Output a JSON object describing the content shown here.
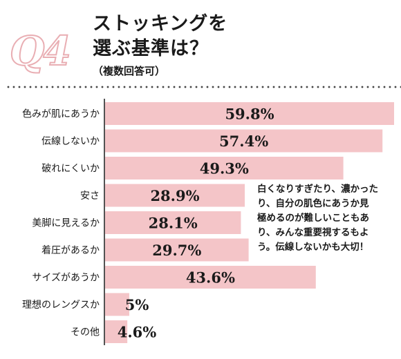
{
  "header": {
    "q_label": "Q4",
    "title_line1": "ストッキングを",
    "title_line2": "選ぶ基準は？",
    "subtitle": "（複数回答可）"
  },
  "note": "白くなりすぎたり、濃かった\nり、自分の肌色にあうか見\n極めるのが難しいこともあ\nり、みんな重要視するもよ\nう。伝線しないかも大切！",
  "colors": {
    "bar": "#f4c5c8",
    "axis": "#1a1a1a",
    "badge": "#e9aeb3"
  },
  "chart_data": {
    "type": "bar",
    "orientation": "horizontal",
    "categories": [
      "色みが肌にあうか",
      "伝線しないか",
      "破れにくいか",
      "安さ",
      "美脚に見えるか",
      "着圧があるか",
      "サイズがあうか",
      "理想のレングスか",
      "その他"
    ],
    "values": [
      59.8,
      57.4,
      49.3,
      28.9,
      28.1,
      29.7,
      43.6,
      5,
      4.6
    ],
    "value_labels": [
      "59.8%",
      "57.4%",
      "49.3%",
      "28.9%",
      "28.1%",
      "29.7%",
      "43.6%",
      "5%",
      "4.6%"
    ],
    "unit": "%",
    "xlim": [
      0,
      60
    ]
  }
}
